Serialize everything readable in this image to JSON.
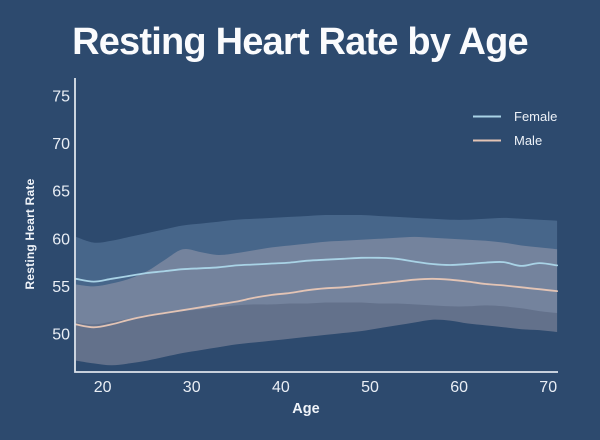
{
  "title": "Resting Heart Rate by Age",
  "colors": {
    "background": "#2d4a6e",
    "title_text": "#fafbfd",
    "axis_line": "#dde3ec",
    "tick_label": "#e9eef5",
    "axis_label": "#f0f4f9",
    "legend_label": "#edf2f8",
    "female_line": "#a9d3e6",
    "male_line": "#e3c4b5",
    "female_band": "rgba(134,170,205,0.30)",
    "male_band": "rgba(196,182,190,0.36)"
  },
  "chart_data": {
    "type": "line",
    "subtype": "mean-lines-with-spread-bands",
    "title": "Resting Heart Rate by Age",
    "xlabel": "Age",
    "ylabel": "Resting Heart Rate",
    "xlim": [
      16.9,
      71.1
    ],
    "ylim": [
      46.0,
      76.9
    ],
    "x_ticks": [
      20,
      30,
      40,
      50,
      60,
      70
    ],
    "y_ticks": [
      50,
      55,
      60,
      65,
      70,
      75
    ],
    "grid": false,
    "legend_position": "upper-right-inside",
    "x": [
      17,
      19,
      21,
      23,
      25,
      27,
      29,
      31,
      33,
      35,
      37,
      39,
      41,
      43,
      45,
      47,
      49,
      51,
      53,
      55,
      57,
      59,
      61,
      63,
      65,
      67,
      69,
      71
    ],
    "series": [
      {
        "name": "Female",
        "color": "#a9d3e6",
        "band_fill": "rgba(134,170,205,0.30)",
        "mean": [
          55.8,
          55.5,
          55.8,
          56.1,
          56.4,
          56.6,
          56.8,
          56.9,
          57.0,
          57.2,
          57.3,
          57.4,
          57.5,
          57.7,
          57.8,
          57.9,
          58.0,
          58.0,
          57.9,
          57.6,
          57.35,
          57.25,
          57.35,
          57.5,
          57.55,
          57.15,
          57.45,
          57.2
        ],
        "upper": [
          60.2,
          59.6,
          59.8,
          60.2,
          60.6,
          61.0,
          61.4,
          61.6,
          61.8,
          62.0,
          62.1,
          62.2,
          62.3,
          62.4,
          62.5,
          62.5,
          62.5,
          62.4,
          62.3,
          62.2,
          62.1,
          62.0,
          62.0,
          62.1,
          62.2,
          62.1,
          62.0,
          61.9
        ],
        "lower": [
          51.2,
          51.0,
          51.3,
          51.6,
          52.0,
          52.2,
          52.4,
          52.6,
          52.8,
          53.0,
          53.1,
          53.1,
          53.2,
          53.2,
          53.3,
          53.3,
          53.3,
          53.2,
          53.2,
          53.1,
          53.0,
          52.9,
          52.9,
          53.0,
          52.9,
          52.7,
          52.4,
          52.2
        ]
      },
      {
        "name": "Male",
        "color": "#e3c4b5",
        "band_fill": "rgba(196,182,190,0.36)",
        "mean": [
          51.0,
          50.7,
          51.0,
          51.5,
          51.9,
          52.2,
          52.5,
          52.8,
          53.1,
          53.4,
          53.8,
          54.1,
          54.3,
          54.6,
          54.8,
          54.9,
          55.1,
          55.3,
          55.5,
          55.7,
          55.8,
          55.7,
          55.5,
          55.25,
          55.1,
          54.9,
          54.7,
          54.5
        ],
        "upper": [
          55.2,
          55.0,
          55.3,
          55.8,
          56.6,
          57.8,
          58.9,
          58.6,
          58.3,
          58.5,
          58.8,
          59.1,
          59.3,
          59.5,
          59.7,
          59.8,
          59.9,
          60.0,
          60.1,
          60.2,
          60.1,
          60.0,
          59.9,
          59.8,
          59.6,
          59.3,
          59.1,
          58.9
        ],
        "lower": [
          47.2,
          46.9,
          46.7,
          46.9,
          47.2,
          47.6,
          48.0,
          48.3,
          48.6,
          48.9,
          49.1,
          49.3,
          49.5,
          49.7,
          49.9,
          50.1,
          50.3,
          50.6,
          50.9,
          51.2,
          51.5,
          51.4,
          51.1,
          50.9,
          50.7,
          50.5,
          50.4,
          50.2
        ]
      }
    ]
  }
}
